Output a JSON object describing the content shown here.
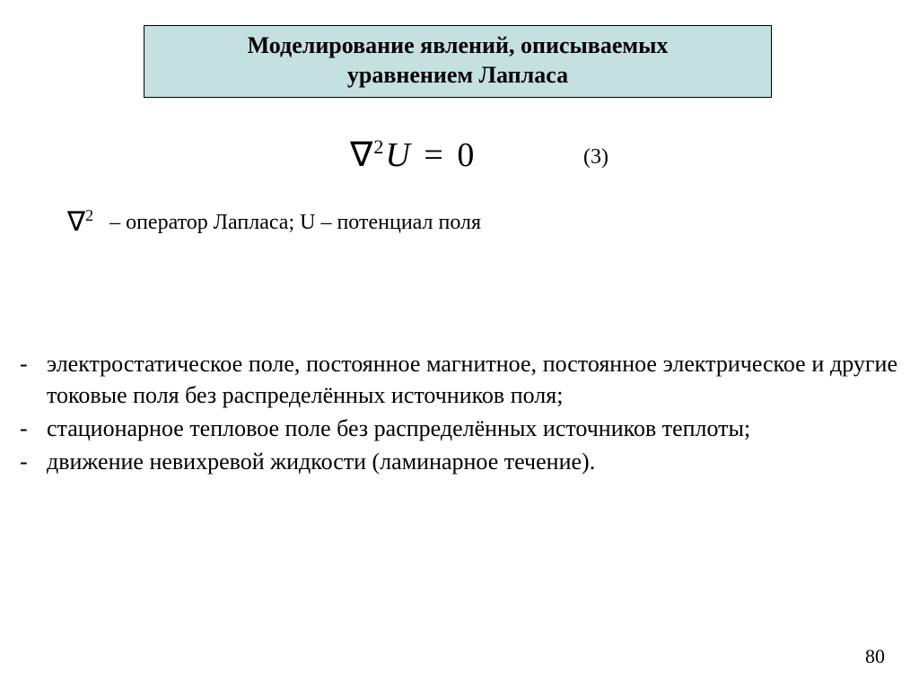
{
  "title": {
    "line1": "Моделирование явлений, описываемых",
    "line2": "уравнением Лапласа",
    "background_color": "#c5e0e0",
    "border_color": "#000000",
    "font_weight": "bold",
    "font_size_pt": 20
  },
  "equation": {
    "display": "∇²U = 0",
    "nabla": "∇",
    "exponent": "2",
    "variable": "U",
    "equals": "=",
    "rhs": "0",
    "number": "(3)",
    "font_size_pt": 28,
    "font_style": "italic"
  },
  "legend": {
    "symbol_nabla": "∇",
    "symbol_exp": "2",
    "text": " – оператор Лапласа; U – потенциал поля",
    "font_size_pt": 18
  },
  "list": {
    "bullet": "-",
    "font_size_pt": 20,
    "text_align": "justify",
    "items": [
      "электростатическое поле, постоянное магнитное, постоянное электрическое и другие токовые поля без распределённых источников поля;",
      "стационарное тепловое поле без распределённых источников теплоты;",
      "движение невихревой жидкости (ламинарное течение)."
    ]
  },
  "page_number": "80",
  "colors": {
    "background": "#ffffff",
    "text": "#000000"
  }
}
